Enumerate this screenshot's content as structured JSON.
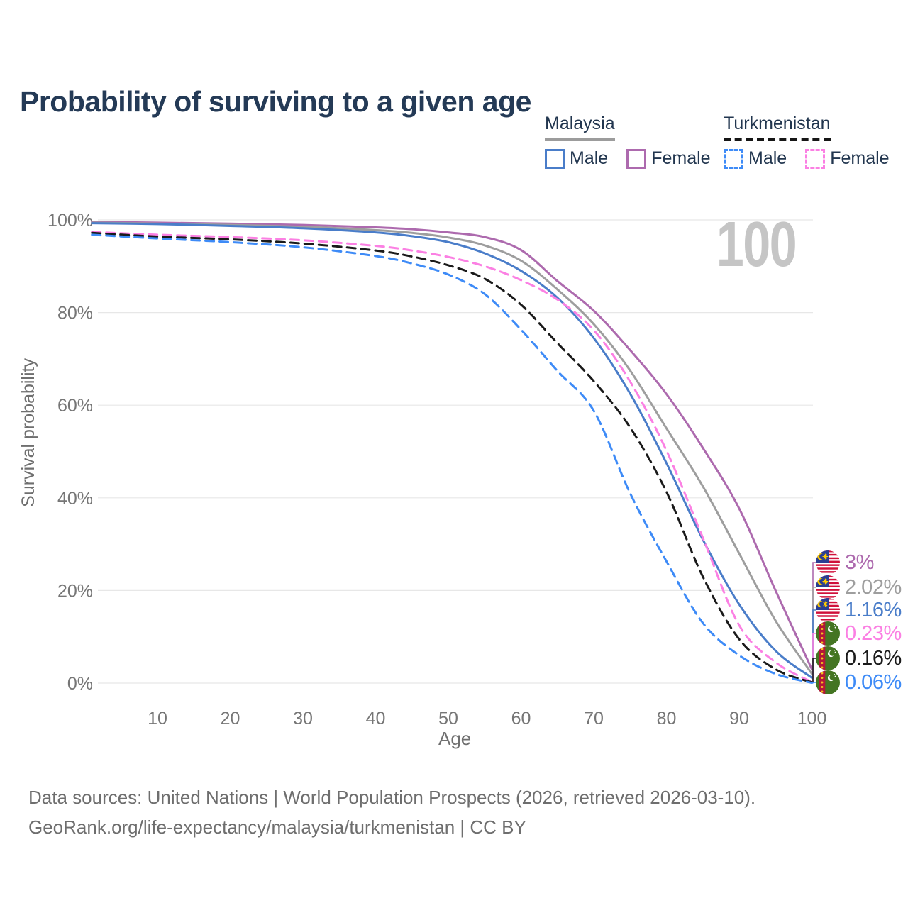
{
  "title": "Probability of surviving to a given age",
  "watermark": "100",
  "legend": {
    "groups": [
      {
        "country": "Malaysia",
        "underline_style": "solid",
        "underline_color": "#9c9c9c",
        "items": [
          {
            "label": "Male",
            "color": "#4a7dc9",
            "dashed": false
          },
          {
            "label": "Female",
            "color": "#ad6aae",
            "dashed": false
          }
        ]
      },
      {
        "country": "Turkmenistan",
        "underline_style": "dashed",
        "underline_color": "#161616",
        "items": [
          {
            "label": "Male",
            "color": "#3e8bf7",
            "dashed": true
          },
          {
            "label": "Female",
            "color": "#fb80e3",
            "dashed": true
          }
        ]
      }
    ]
  },
  "chart_data": {
    "type": "line",
    "title": "Probability of surviving to a given age",
    "xlabel": "Age",
    "ylabel": "Survival probability",
    "x_range": [
      1,
      100
    ],
    "y_range_pct": [
      0,
      100
    ],
    "grid": "horizontal",
    "x_ticks": [
      10,
      20,
      30,
      40,
      50,
      60,
      70,
      80,
      90,
      100
    ],
    "y_ticks": [
      {
        "label": "100%",
        "value": 100
      },
      {
        "label": "80%",
        "value": 80
      },
      {
        "label": "60%",
        "value": 60
      },
      {
        "label": "40%",
        "value": 40
      },
      {
        "label": "20%",
        "value": 20
      },
      {
        "label": "0%",
        "value": 0
      }
    ],
    "ages": [
      1,
      10,
      20,
      30,
      40,
      45,
      50,
      55,
      60,
      65,
      70,
      75,
      80,
      85,
      90,
      95,
      100
    ],
    "series": [
      {
        "id": "malaysia-female",
        "name": "Malaysia Female",
        "country": "Malaysia",
        "sex": "Female",
        "color": "#ad6aae",
        "dashed": false,
        "end_label": "3%",
        "end_value": 3,
        "values": [
          99.6,
          99.4,
          99.2,
          98.9,
          98.4,
          98.0,
          97.3,
          96.3,
          93.5,
          86.8,
          80.4,
          71.9,
          62.4,
          50.8,
          37.7,
          20.0,
          3.0
        ]
      },
      {
        "id": "malaysia-all",
        "name": "Malaysia (both sexes)",
        "country": "Malaysia",
        "sex": "All",
        "color": "#9e9e9e",
        "dashed": false,
        "end_label": "2.02%",
        "end_value": 2.02,
        "values": [
          99.4,
          99.2,
          98.9,
          98.5,
          97.8,
          97.2,
          96.2,
          94.5,
          91.2,
          85.0,
          77.5,
          67.5,
          55.0,
          42.5,
          28.0,
          13.5,
          2.02
        ]
      },
      {
        "id": "malaysia-male",
        "name": "Malaysia Male",
        "country": "Malaysia",
        "sex": "Male",
        "color": "#4a7dc9",
        "dashed": false,
        "end_label": "1.16%",
        "end_value": 1.16,
        "values": [
          99.3,
          99.1,
          98.7,
          98.2,
          97.3,
          96.5,
          95.2,
          92.8,
          89.0,
          83.2,
          74.5,
          62.5,
          47.5,
          31.0,
          17.0,
          7.0,
          1.16
        ]
      },
      {
        "id": "turkmenistan-female",
        "name": "Turkmenistan Female",
        "country": "Turkmenistan",
        "sex": "Female",
        "color": "#fb80e3",
        "dashed": true,
        "end_label": "0.23%",
        "end_value": 0.23,
        "values": [
          97.4,
          96.8,
          96.3,
          95.6,
          94.4,
          93.4,
          92.0,
          90.0,
          87.0,
          82.8,
          76.2,
          65.1,
          50.2,
          31.4,
          12.5,
          4.5,
          0.23
        ]
      },
      {
        "id": "turkmenistan-all",
        "name": "Turkmenistan (both sexes)",
        "country": "Turkmenistan",
        "sex": "All",
        "color": "#1a1a1a",
        "dashed": true,
        "end_label": "0.16%",
        "end_value": 0.16,
        "values": [
          97.2,
          96.4,
          95.8,
          94.9,
          93.4,
          92.1,
          90.2,
          87.3,
          81.7,
          73.4,
          65.2,
          55.2,
          41.3,
          23.0,
          9.5,
          3.0,
          0.16
        ]
      },
      {
        "id": "turkmenistan-male",
        "name": "Turkmenistan Male",
        "country": "Turkmenistan",
        "sex": "Male",
        "color": "#3e8bf7",
        "dashed": true,
        "end_label": "0.06%",
        "end_value": 0.06,
        "values": [
          96.8,
          96.0,
          95.2,
          94.1,
          92.2,
          90.6,
          88.2,
          84.0,
          76.3,
          67.4,
          58.8,
          41.0,
          26.3,
          13.0,
          6.0,
          2.0,
          0.06
        ]
      }
    ],
    "legend_position": "top-right"
  },
  "footer": {
    "line1": "Data sources: United Nations | World Population Prospects (2026, retrieved 2026-03-10).",
    "line2": "GeoRank.org/life-expectancy/malaysia/turkmenistan | CC BY"
  }
}
